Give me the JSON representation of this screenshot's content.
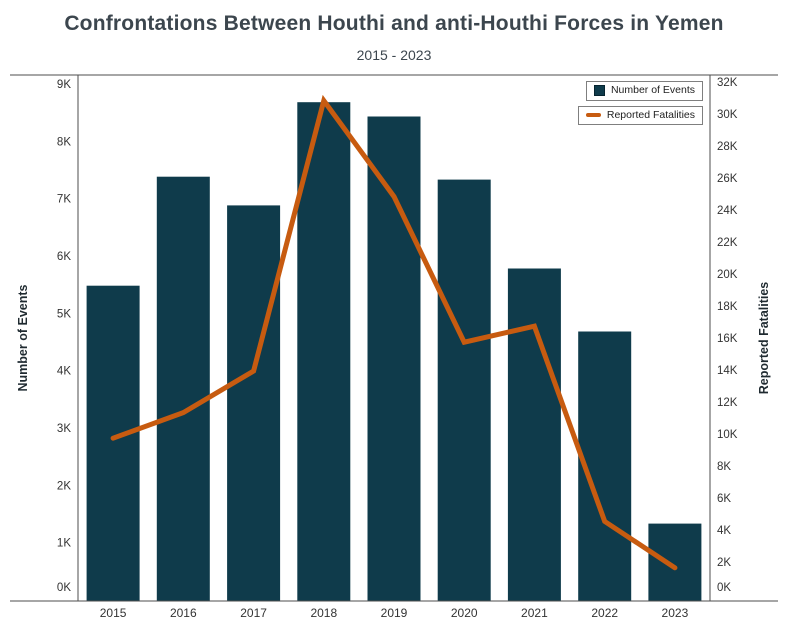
{
  "chart_data": {
    "type": "bar+line",
    "title": "Confrontations Between Houthi and anti-Houthi Forces in Yemen",
    "subtitle": "2015 - 2023",
    "categories": [
      "2015",
      "2016",
      "2017",
      "2018",
      "2019",
      "2020",
      "2021",
      "2022",
      "2023"
    ],
    "series": [
      {
        "name": "Number of Events",
        "type": "bar",
        "axis": "left",
        "color": "#0f3b4b",
        "values": [
          5500,
          7400,
          6900,
          8700,
          8450,
          7350,
          5800,
          4700,
          1350
        ]
      },
      {
        "name": "Reported Fatalities",
        "type": "line",
        "axis": "right",
        "color": "#c75b10",
        "values": [
          9800,
          11400,
          14000,
          30900,
          24900,
          15800,
          16800,
          4600,
          1700
        ]
      }
    ],
    "left_axis": {
      "label": "Number of Events",
      "min": 0,
      "max": 9000,
      "step": 1000,
      "tick_labels": [
        "0K",
        "1K",
        "2K",
        "3K",
        "4K",
        "5K",
        "6K",
        "7K",
        "8K",
        "9K"
      ]
    },
    "right_axis": {
      "label": "Reported Fatalities",
      "min": 0,
      "max": 32000,
      "step": 2000,
      "tick_labels": [
        "0K",
        "2K",
        "4K",
        "6K",
        "8K",
        "10K",
        "12K",
        "14K",
        "16K",
        "18K",
        "20K",
        "22K",
        "24K",
        "26K",
        "28K",
        "30K",
        "32K"
      ]
    },
    "legend": [
      {
        "label": "Number of Events",
        "swatch": "square",
        "color": "#0f3b4b"
      },
      {
        "label": "Reported Fatalities",
        "swatch": "line",
        "color": "#c75b10"
      }
    ],
    "grid": false,
    "legend_position": "top-right"
  },
  "colors": {
    "background": "#ffffff",
    "title": "#3c464e",
    "axis_line": "#4d4d4d",
    "tick_label": "#333333",
    "axis_title": "#1f2a30",
    "bar": "#0f3b4b",
    "line": "#c75b10"
  }
}
